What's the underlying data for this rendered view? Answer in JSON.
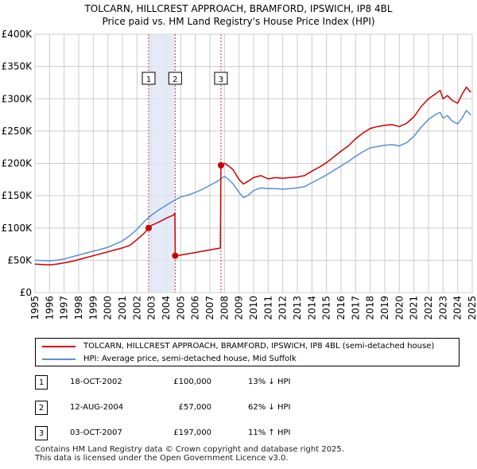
{
  "chart_data": {
    "type": "line",
    "title": "TOLCARN, HILLCREST APPROACH, BRAMFORD, IPSWICH, IP8 4BL",
    "subtitle": "Price paid vs. HM Land Registry's House Price Index (HPI)",
    "xlabel": "",
    "ylabel": "",
    "xlim": [
      1995.0,
      2025.0
    ],
    "ylim": [
      0,
      400000
    ],
    "x_ticks": [
      "1995",
      "1996",
      "1997",
      "1998",
      "1999",
      "2000",
      "2001",
      "2002",
      "2003",
      "2004",
      "2005",
      "2006",
      "2007",
      "2008",
      "2009",
      "2010",
      "2011",
      "2012",
      "2013",
      "2014",
      "2015",
      "2016",
      "2017",
      "2018",
      "2019",
      "2020",
      "2021",
      "2022",
      "2023",
      "2024",
      "2025"
    ],
    "y_ticks": [
      {
        "value": 0,
        "label": "£0"
      },
      {
        "value": 50000,
        "label": "£50K"
      },
      {
        "value": 100000,
        "label": "£100K"
      },
      {
        "value": 150000,
        "label": "£150K"
      },
      {
        "value": 200000,
        "label": "£200K"
      },
      {
        "value": 250000,
        "label": "£250K"
      },
      {
        "value": 300000,
        "label": "£300K"
      },
      {
        "value": 350000,
        "label": "£350K"
      },
      {
        "value": 400000,
        "label": "£400K"
      }
    ],
    "grid": true,
    "shaded_range": [
      2002.8,
      2004.6
    ],
    "colors": {
      "property": "#cc0000",
      "hpi": "#5b8fd4",
      "vline": "#cc3333",
      "shade": "#dde6f5",
      "grid": "#cccccc"
    },
    "series": [
      {
        "name": "TOLCARN, HILLCREST APPROACH, BRAMFORD, IPSWICH, IP8 4BL (semi-detached house)",
        "color": "#cc0000",
        "x": [
          1995.0,
          1995.5,
          1996.0,
          1996.5,
          1997.0,
          1997.5,
          1998.0,
          1998.5,
          1999.0,
          1999.5,
          2000.0,
          2000.5,
          2001.0,
          2001.5,
          2002.0,
          2002.5,
          2002.8,
          2003.0,
          2003.5,
          2004.0,
          2004.5,
          2004.6,
          2004.62,
          2005.0,
          2005.5,
          2006.0,
          2006.5,
          2007.0,
          2007.5,
          2007.72,
          2007.76,
          2008.0,
          2008.3,
          2008.6,
          2009.0,
          2009.3,
          2009.6,
          2010.0,
          2010.5,
          2011.0,
          2011.5,
          2012.0,
          2012.5,
          2013.0,
          2013.5,
          2014.0,
          2014.5,
          2015.0,
          2015.5,
          2016.0,
          2016.5,
          2017.0,
          2017.5,
          2018.0,
          2018.5,
          2019.0,
          2019.5,
          2020.0,
          2020.5,
          2021.0,
          2021.5,
          2022.0,
          2022.5,
          2022.8,
          2023.0,
          2023.3,
          2023.6,
          2024.0,
          2024.3,
          2024.6,
          2024.9
        ],
        "values": [
          44000,
          43500,
          43000,
          44000,
          46000,
          48000,
          51000,
          54000,
          57000,
          60000,
          63000,
          66000,
          69000,
          73000,
          82000,
          92000,
          100000,
          104000,
          109000,
          115000,
          120000,
          123000,
          57000,
          58000,
          60000,
          62000,
          64000,
          66000,
          68000,
          69000,
          197000,
          200000,
          196000,
          190000,
          175000,
          168000,
          172000,
          178000,
          181000,
          176000,
          178000,
          177000,
          178000,
          179000,
          181000,
          188000,
          194000,
          201000,
          210000,
          219000,
          227000,
          238000,
          247000,
          254000,
          257000,
          259000,
          260000,
          257000,
          262000,
          272000,
          288000,
          300000,
          308000,
          313000,
          300000,
          305000,
          298000,
          293000,
          307000,
          318000,
          310000
        ]
      },
      {
        "name": "HPI: Average price, semi-detached house, Mid Suffolk",
        "color": "#5b8fd4",
        "x": [
          1995.0,
          1995.5,
          1996.0,
          1996.5,
          1997.0,
          1997.5,
          1998.0,
          1998.5,
          1999.0,
          1999.5,
          2000.0,
          2000.5,
          2001.0,
          2001.5,
          2002.0,
          2002.5,
          2003.0,
          2003.5,
          2004.0,
          2004.5,
          2005.0,
          2005.5,
          2006.0,
          2006.5,
          2007.0,
          2007.5,
          2008.0,
          2008.3,
          2008.6,
          2009.0,
          2009.3,
          2009.6,
          2010.0,
          2010.5,
          2011.0,
          2011.5,
          2012.0,
          2012.5,
          2013.0,
          2013.5,
          2014.0,
          2014.5,
          2015.0,
          2015.5,
          2016.0,
          2016.5,
          2017.0,
          2017.5,
          2018.0,
          2018.5,
          2019.0,
          2019.5,
          2020.0,
          2020.5,
          2021.0,
          2021.5,
          2022.0,
          2022.5,
          2022.8,
          2023.0,
          2023.3,
          2023.6,
          2024.0,
          2024.3,
          2024.6,
          2024.9
        ],
        "values": [
          50000,
          49500,
          49000,
          50000,
          52000,
          55000,
          58000,
          61000,
          64000,
          67000,
          70000,
          75000,
          80000,
          88000,
          98000,
          110000,
          120000,
          128000,
          135000,
          142000,
          148000,
          151000,
          155000,
          160000,
          166000,
          172000,
          180000,
          175000,
          168000,
          155000,
          147000,
          150000,
          158000,
          162000,
          161000,
          161000,
          160000,
          161000,
          162000,
          164000,
          170000,
          176000,
          182000,
          189000,
          196000,
          203000,
          211000,
          218000,
          224000,
          226000,
          228000,
          229000,
          227000,
          232000,
          242000,
          256000,
          268000,
          276000,
          279000,
          270000,
          274000,
          266000,
          261000,
          270000,
          282000,
          275000
        ]
      }
    ],
    "transactions": [
      {
        "id": "1",
        "x": 2002.8,
        "price": 100000,
        "date": "18-OCT-2002",
        "price_label": "£100,000",
        "hpi_label": "13% ↓ HPI"
      },
      {
        "id": "2",
        "x": 2004.62,
        "price": 57000,
        "date": "12-AUG-2004",
        "price_label": "£57,000",
        "hpi_label": "62% ↓ HPI"
      },
      {
        "id": "3",
        "x": 2007.76,
        "price": 197000,
        "date": "03-OCT-2007",
        "price_label": "£197,000",
        "hpi_label": "11% ↑ HPI"
      }
    ],
    "legend": {
      "position": "below",
      "entries": [
        "TOLCARN, HILLCREST APPROACH, BRAMFORD, IPSWICH, IP8 4BL (semi-detached house)",
        "HPI: Average price, semi-detached house, Mid Suffolk"
      ]
    }
  },
  "footer": {
    "line1": "Contains HM Land Registry data © Crown copyright and database right 2025.",
    "line2": "This data is licensed under the Open Government Licence v3.0."
  }
}
